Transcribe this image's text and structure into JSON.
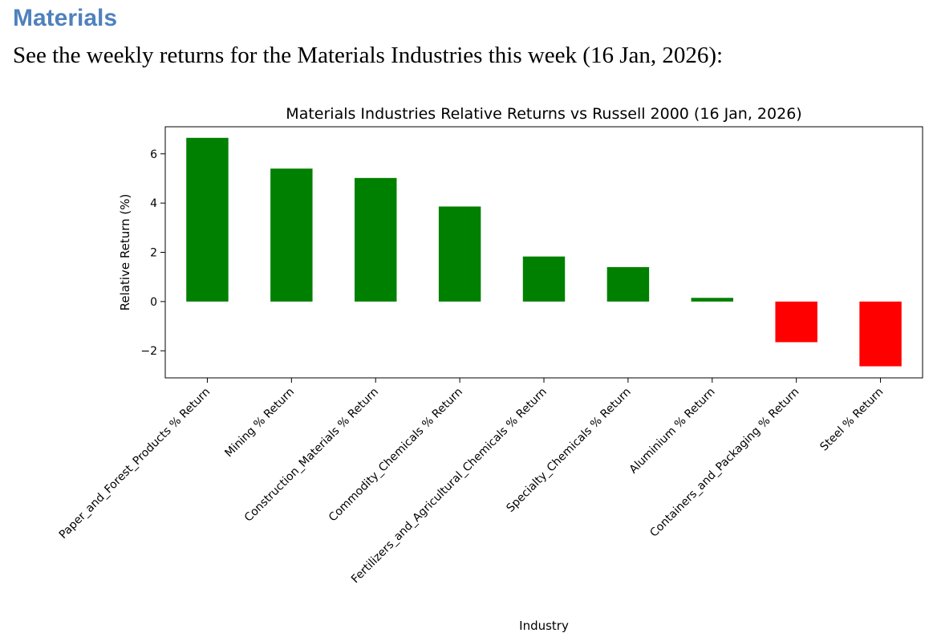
{
  "document": {
    "heading": "Materials",
    "intro": "See the weekly returns for the Materials Industries this week (16 Jan, 2026):"
  },
  "colors": {
    "heading": "#4f81bd",
    "positive": "#008000",
    "negative": "#ff0000"
  },
  "chart_data": {
    "type": "bar",
    "title": "Materials Industries Relative Returns vs Russell 2000 (16 Jan, 2026)",
    "xlabel": "Industry",
    "ylabel": "Relative Return (%)",
    "ylim": [
      -3.1,
      7.1
    ],
    "yticks": [
      -2,
      0,
      2,
      4,
      6
    ],
    "ytick_labels": [
      "−2",
      "0",
      "2",
      "4",
      "6"
    ],
    "grid": false,
    "legend": "none",
    "categories": [
      "Paper_and_Forest_Products % Return",
      "Mining % Return",
      "Construction_Materials % Return",
      "Commodity_Chemicals % Return",
      "Fertilizers_and_Agricultural_Chemicals % Return",
      "Specialty_Chemicals % Return",
      "Aluminium % Return",
      "Containers_and_Packaging % Return",
      "Steel % Return"
    ],
    "values": [
      6.65,
      5.4,
      5.02,
      3.86,
      1.83,
      1.4,
      0.15,
      -1.65,
      -2.63
    ]
  }
}
